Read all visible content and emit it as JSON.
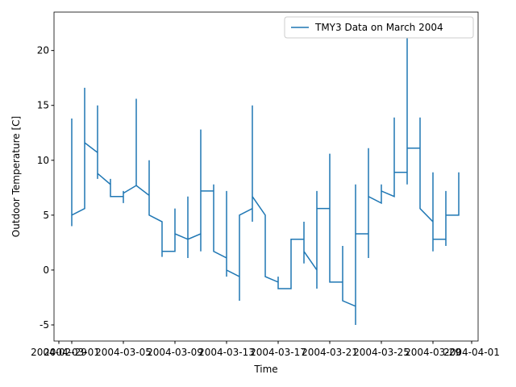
{
  "chart_data": {
    "type": "line",
    "x_label": "Time",
    "y_label": "Outdoor Temperature [C]",
    "x": [
      "2004-03-01",
      "2004-03-01",
      "2004-03-01",
      "2004-03-02",
      "2004-03-02",
      "2004-03-02",
      "2004-03-03",
      "2004-03-03",
      "2004-03-03",
      "2004-03-03",
      "2004-03-04",
      "2004-03-04",
      "2004-03-04",
      "2004-03-05",
      "2004-03-05",
      "2004-03-05",
      "2004-03-05",
      "2004-03-06",
      "2004-03-06",
      "2004-03-06",
      "2004-03-07",
      "2004-03-07",
      "2004-03-07",
      "2004-03-08",
      "2004-03-08",
      "2004-03-08",
      "2004-03-09",
      "2004-03-09",
      "2004-03-09",
      "2004-03-10",
      "2004-03-10",
      "2004-03-10",
      "2004-03-10",
      "2004-03-11",
      "2004-03-11",
      "2004-03-11",
      "2004-03-11",
      "2004-03-12",
      "2004-03-12",
      "2004-03-12",
      "2004-03-13",
      "2004-03-13",
      "2004-03-13",
      "2004-03-13",
      "2004-03-14",
      "2004-03-14",
      "2004-03-14",
      "2004-03-15",
      "2004-03-15",
      "2004-03-15",
      "2004-03-15",
      "2004-03-16",
      "2004-03-16",
      "2004-03-17",
      "2004-03-17",
      "2004-03-17",
      "2004-03-18",
      "2004-03-18",
      "2004-03-19",
      "2004-03-19",
      "2004-03-19",
      "2004-03-19",
      "2004-03-20",
      "2004-03-20",
      "2004-03-20",
      "2004-03-20",
      "2004-03-21",
      "2004-03-21",
      "2004-03-21",
      "2004-03-22",
      "2004-03-22",
      "2004-03-22",
      "2004-03-23",
      "2004-03-23",
      "2004-03-23",
      "2004-03-23",
      "2004-03-24",
      "2004-03-24",
      "2004-03-24",
      "2004-03-24",
      "2004-03-25",
      "2004-03-25",
      "2004-03-25",
      "2004-03-26",
      "2004-03-26",
      "2004-03-26",
      "2004-03-27",
      "2004-03-27",
      "2004-03-27",
      "2004-03-27",
      "2004-03-28",
      "2004-03-28",
      "2004-03-28",
      "2004-03-29",
      "2004-03-29",
      "2004-03-29",
      "2004-03-29",
      "2004-03-30",
      "2004-03-30",
      "2004-03-30",
      "2004-03-30",
      "2004-03-31",
      "2004-03-31",
      "2004-03-31",
      "2004-03-31"
    ],
    "series": [
      {
        "name": "TMY3 Data on March 2004",
        "color": "#1f77b4",
        "values": [
          13.8,
          4.0,
          5.0,
          5.6,
          16.6,
          11.6,
          10.7,
          15.0,
          8.3,
          8.8,
          7.8,
          8.3,
          6.7,
          6.7,
          7.2,
          6.1,
          7.0,
          7.7,
          15.6,
          7.7,
          6.8,
          10.0,
          5.0,
          4.4,
          1.2,
          1.7,
          1.7,
          5.6,
          3.3,
          2.8,
          6.7,
          1.1,
          2.8,
          3.3,
          12.8,
          1.7,
          7.2,
          7.2,
          7.8,
          1.7,
          1.1,
          7.2,
          -0.6,
          0,
          -0.6,
          -2.8,
          5.0,
          5.6,
          15.0,
          4.4,
          6.7,
          5.0,
          -0.6,
          -1.1,
          -0.6,
          -1.7,
          -1.7,
          2.8,
          2.8,
          4.4,
          0.6,
          1.7,
          0,
          7.2,
          -1.7,
          5.6,
          5.6,
          10.6,
          -1.1,
          -1.1,
          2.2,
          -2.8,
          -3.3,
          -5.0,
          7.8,
          3.3,
          3.3,
          11.1,
          1.1,
          6.7,
          6.1,
          7.8,
          7.2,
          6.7,
          13.9,
          8.9,
          8.9,
          21.7,
          7.8,
          11.1,
          11.1,
          13.9,
          5.6,
          4.4,
          8.9,
          1.7,
          2.8,
          2.8,
          7.2,
          2.2,
          5.0,
          5.0,
          8.9,
          5.0,
          5.3
        ]
      }
    ],
    "xlim": [
      "2004-02-28T15:00",
      "2004-04-01T12:00"
    ],
    "xticks": [
      "2004-02-29",
      "2004-03-01",
      "2004-03-05",
      "2004-03-09",
      "2004-03-13",
      "2004-03-17",
      "2004-03-21",
      "2004-03-25",
      "2004-03-29",
      "2004-04-01"
    ],
    "ylim": [
      -6.47,
      23.5
    ],
    "yticks": [
      -5,
      0,
      5,
      10,
      15,
      20
    ],
    "grid": false,
    "legend": "upper right"
  }
}
